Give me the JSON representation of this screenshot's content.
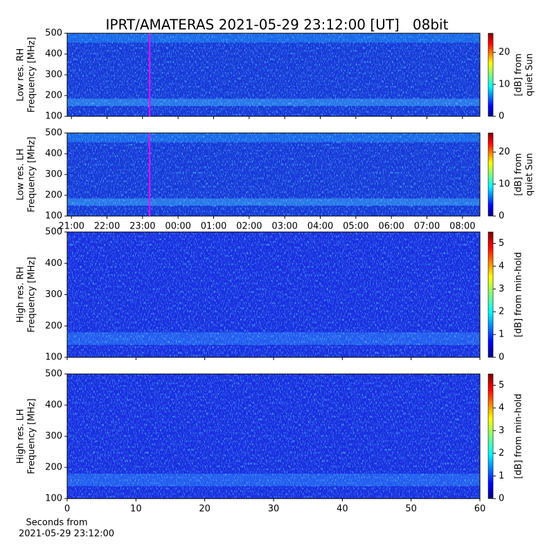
{
  "title": "IPRT/AMATERAS 2021-05-29 23:12:00 [UT]   08bit",
  "chart_data": [
    {
      "type": "heatmap",
      "ylabel": [
        "Low res. RH",
        "Frequency [MHz]"
      ],
      "xlim": [
        20.88,
        32.49
      ],
      "ylim": [
        100,
        500
      ],
      "yticks": [
        100,
        200,
        300,
        400,
        500
      ],
      "clim": [
        0,
        26
      ],
      "cticks": [
        0,
        10,
        20
      ],
      "colorbar_label": [
        "[dB] from",
        "quiet Sun"
      ],
      "marker_x": 23.2,
      "marker_color": "#ff00ff"
    },
    {
      "type": "heatmap",
      "ylabel": [
        "Low res. LH",
        "Frequency [MHz]"
      ],
      "xlim": [
        20.88,
        32.49
      ],
      "ylim": [
        100,
        500
      ],
      "yticks": [
        100,
        200,
        300,
        400,
        500
      ],
      "xticks": [
        {
          "value": 21,
          "label": "21:00"
        },
        {
          "value": 22,
          "label": "22:00"
        },
        {
          "value": 23,
          "label": "23:00"
        },
        {
          "value": 24,
          "label": "00:00"
        },
        {
          "value": 25,
          "label": "01:00"
        },
        {
          "value": 26,
          "label": "02:00"
        },
        {
          "value": 27,
          "label": "03:00"
        },
        {
          "value": 28,
          "label": "04:00"
        },
        {
          "value": 29,
          "label": "05:00"
        },
        {
          "value": 30,
          "label": "06:00"
        },
        {
          "value": 31,
          "label": "07:00"
        },
        {
          "value": 32,
          "label": "08:00"
        }
      ],
      "clim": [
        0,
        26
      ],
      "cticks": [
        0,
        10,
        20
      ],
      "colorbar_label": [
        "[dB] from",
        "quiet Sun"
      ],
      "marker_x": 23.2,
      "marker_color": "#ff00ff"
    },
    {
      "type": "heatmap",
      "ylabel": [
        "High res. RH",
        "Frequency [MHz]"
      ],
      "xlim": [
        0,
        60
      ],
      "ylim": [
        100,
        500
      ],
      "yticks": [
        100,
        200,
        300,
        400,
        500
      ],
      "clim": [
        0,
        5.5
      ],
      "cticks": [
        0,
        1,
        2,
        3,
        4,
        5
      ],
      "colorbar_label": [
        "[dB] from min-hold"
      ]
    },
    {
      "type": "heatmap",
      "ylabel": [
        "High res. LH",
        "Frequency [MHz]"
      ],
      "xlim": [
        0,
        60
      ],
      "ylim": [
        100,
        500
      ],
      "yticks": [
        100,
        200,
        300,
        400,
        500
      ],
      "xticks": [
        0,
        10,
        20,
        30,
        40,
        50,
        60
      ],
      "xlabel": [
        "Seconds from",
        "2021-05-29 23:12:00"
      ],
      "clim": [
        0,
        5.5
      ],
      "cticks": [
        0,
        1,
        2,
        3,
        4,
        5
      ],
      "colorbar_label": [
        "[dB] from min-hold"
      ]
    }
  ]
}
